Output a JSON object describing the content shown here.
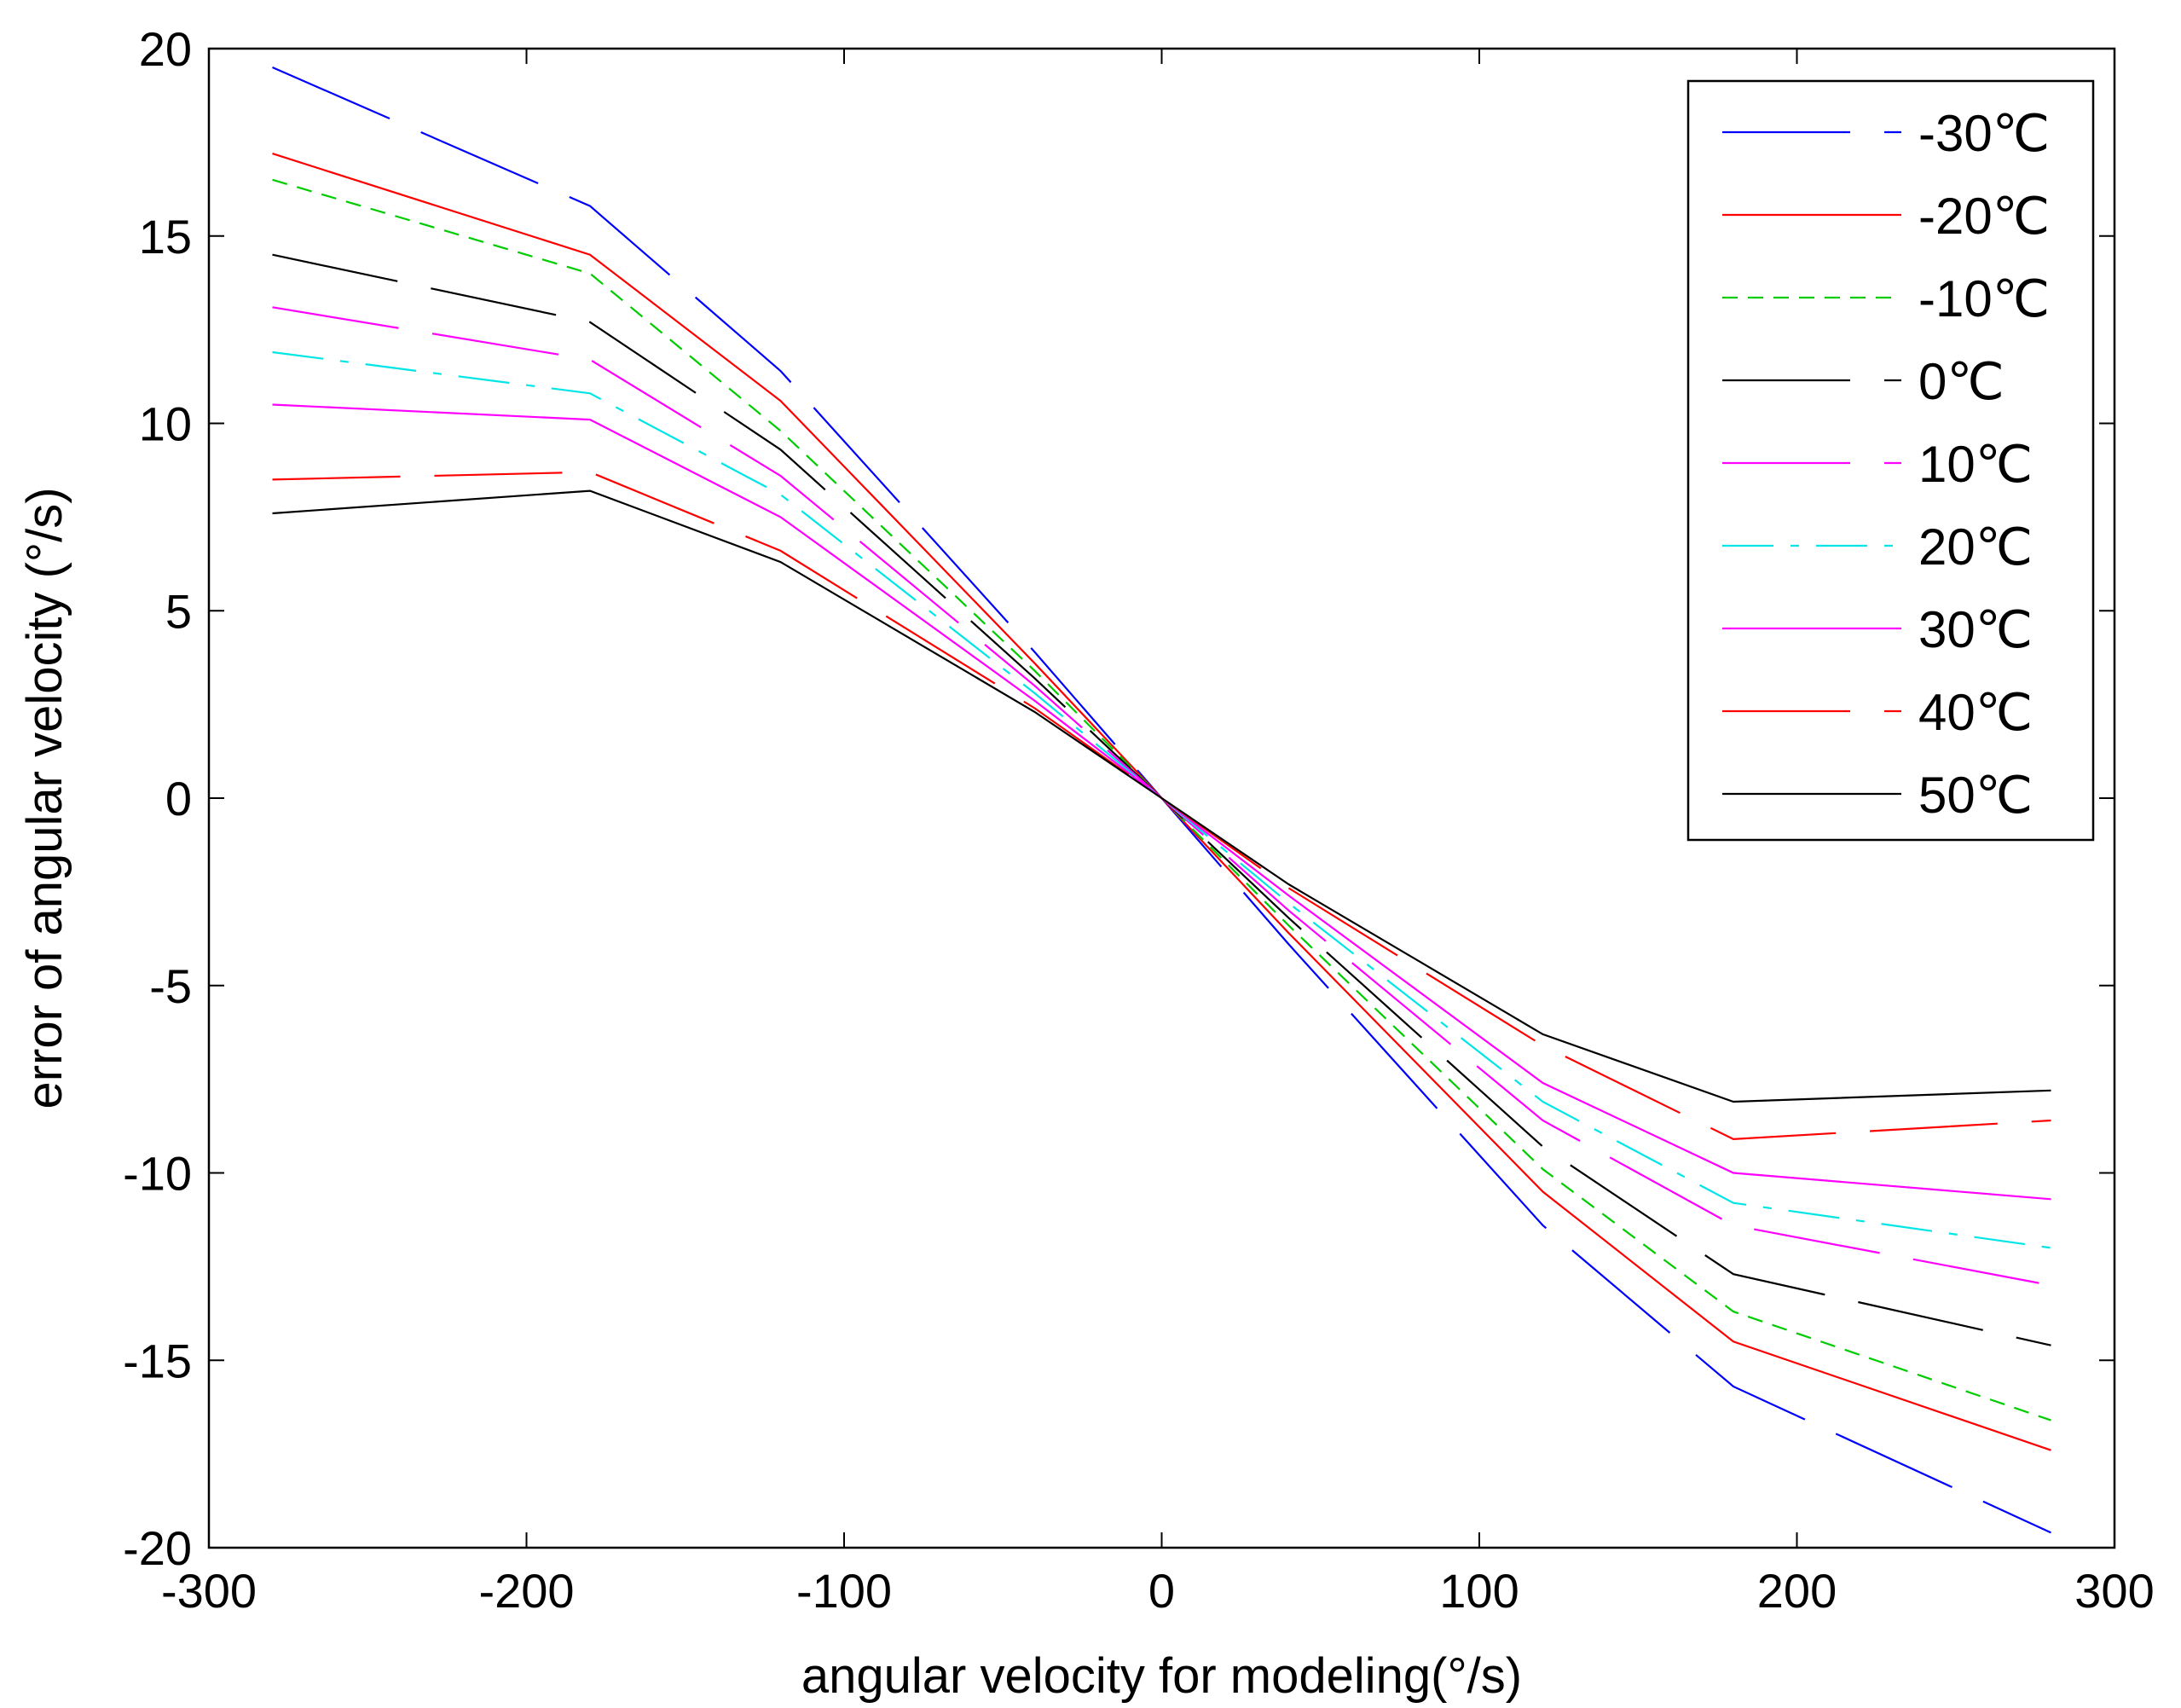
{
  "chart_data": {
    "type": "line",
    "title": "",
    "xlabel": "angular velocity for modeling(°/s)",
    "ylabel": "error of angular velocity (°/s)",
    "xlim": [
      -300,
      300
    ],
    "ylim": [
      -20,
      20
    ],
    "xticks": [
      -300,
      -200,
      -100,
      0,
      100,
      200,
      300
    ],
    "yticks": [
      -20,
      -15,
      -10,
      -5,
      0,
      5,
      10,
      15,
      20
    ],
    "grid": false,
    "legend_position": "top-right",
    "x": [
      -280,
      -180,
      -120,
      -40,
      0,
      40,
      120,
      180,
      280
    ],
    "series": [
      {
        "name": "-30℃",
        "color": "#0000ff",
        "dash": "long-dash",
        "values": [
          19.5,
          15.8,
          11.4,
          3.9,
          0.0,
          -3.9,
          -11.4,
          -15.7,
          -19.6
        ]
      },
      {
        "name": "-20℃",
        "color": "#ff0000",
        "dash": "solid",
        "values": [
          17.2,
          14.5,
          10.6,
          3.6,
          0.0,
          -3.6,
          -10.5,
          -14.5,
          -17.4
        ]
      },
      {
        "name": "-10℃",
        "color": "#00cc00",
        "dash": "dashed",
        "values": [
          16.5,
          14.0,
          9.8,
          3.4,
          0.0,
          -3.4,
          -9.9,
          -13.7,
          -16.6
        ]
      },
      {
        "name": "0℃",
        "color": "#000000",
        "dash": "long-dash",
        "values": [
          14.5,
          12.7,
          9.3,
          3.2,
          0.0,
          -3.2,
          -9.3,
          -12.7,
          -14.6
        ]
      },
      {
        "name": "10℃",
        "color": "#ff00ff",
        "dash": "long-dash",
        "values": [
          13.1,
          11.7,
          8.6,
          3.0,
          0.0,
          -3.0,
          -8.6,
          -11.4,
          -13.0
        ]
      },
      {
        "name": "20℃",
        "color": "#00e5e5",
        "dash": "dash-dot",
        "values": [
          11.9,
          10.8,
          8.1,
          2.8,
          0.0,
          -2.8,
          -8.1,
          -10.8,
          -12.0
        ]
      },
      {
        "name": "30℃",
        "color": "#ff00ff",
        "dash": "solid",
        "values": [
          10.5,
          10.1,
          7.5,
          2.6,
          0.0,
          -2.6,
          -7.6,
          -10.0,
          -10.7
        ]
      },
      {
        "name": "40℃",
        "color": "#ff0000",
        "dash": "long-dash",
        "values": [
          8.5,
          8.7,
          6.6,
          2.4,
          0.0,
          -2.4,
          -6.6,
          -9.1,
          -8.6
        ]
      },
      {
        "name": "50℃",
        "color": "#000000",
        "dash": "solid",
        "values": [
          7.6,
          8.2,
          6.3,
          2.3,
          0.0,
          -2.3,
          -6.3,
          -8.1,
          -7.8
        ]
      }
    ]
  }
}
